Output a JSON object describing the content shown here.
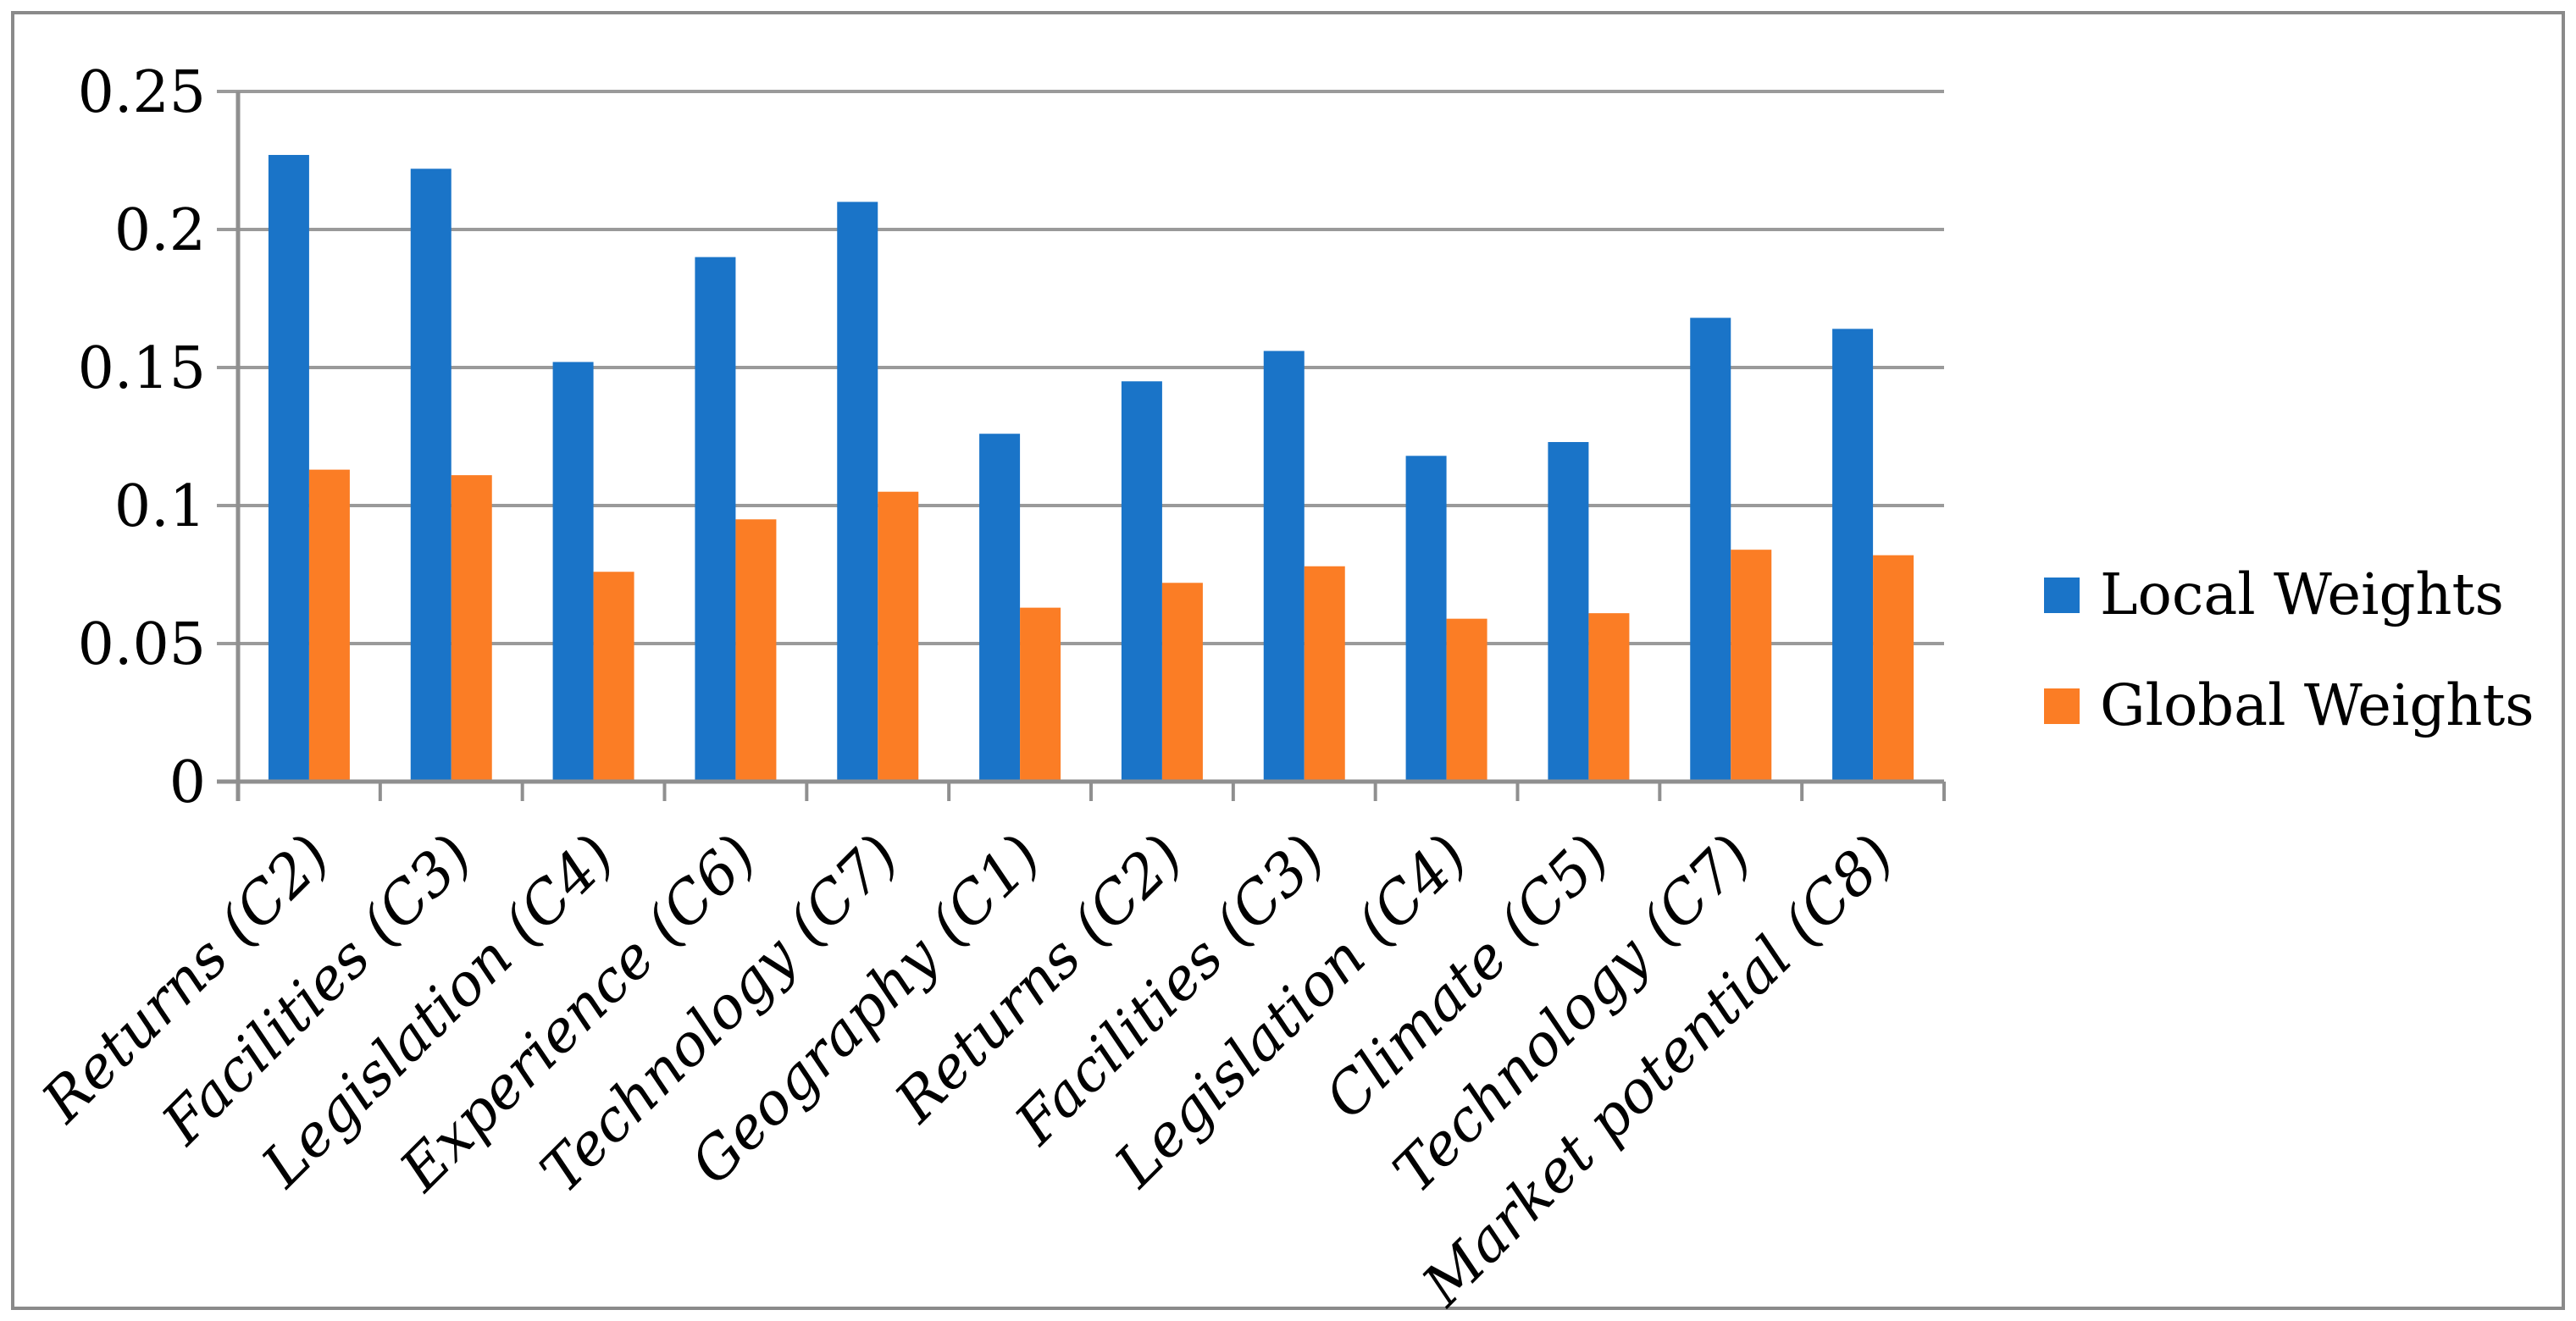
{
  "chart_data": {
    "type": "bar",
    "title": "",
    "xlabel": "",
    "ylabel": "",
    "categories": [
      "Returns (C2)",
      "Facilities (C3)",
      "Legislation (C4)",
      "Experience (C6)",
      "Technology (C7)",
      "Geography (C1)",
      "Returns (C2)",
      "Facilities (C3)",
      "Legislation (C4)",
      "Climate (C5)",
      "Technology (C7)",
      "Market potential (C8)"
    ],
    "series": [
      {
        "name": "Local Weights",
        "color": "#1a74c8",
        "values": [
          0.227,
          0.222,
          0.152,
          0.19,
          0.21,
          0.126,
          0.145,
          0.156,
          0.118,
          0.123,
          0.168,
          0.164
        ]
      },
      {
        "name": "Global Weights",
        "color": "#fb7d25",
        "values": [
          0.113,
          0.111,
          0.076,
          0.095,
          0.105,
          0.063,
          0.072,
          0.078,
          0.059,
          0.061,
          0.084,
          0.082
        ]
      }
    ],
    "ylim": [
      0,
      0.25
    ],
    "ytick_labels": [
      "0",
      "0.05",
      "0.1",
      "0.15",
      "0.2",
      "0.25"
    ],
    "ytick_values": [
      0,
      0.05,
      0.1,
      0.15,
      0.2,
      0.25
    ],
    "grid": "horizontal",
    "grid_color": "#9a9a9a",
    "axis_color": "#8f8f8f",
    "text_color": "#000000",
    "legend_position": "right",
    "x_label_rotation_deg": -45
  }
}
